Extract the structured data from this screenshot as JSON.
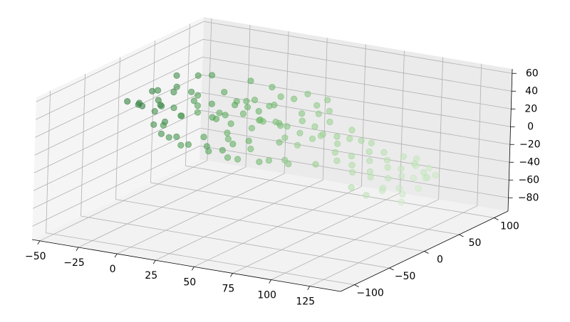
{
  "chart_data": {
    "type": "scatter",
    "projection": "3d",
    "title": "",
    "xlabel": "",
    "ylabel": "",
    "zlabel": "",
    "grid": true,
    "legend": "none",
    "xlim": [
      -55,
      145
    ],
    "ylim": [
      -120,
      120
    ],
    "zlim": [
      -95,
      65
    ],
    "x_ticks": [
      -50,
      -25,
      0,
      25,
      50,
      75,
      100,
      125
    ],
    "x_tick_labels": [
      "−50",
      "−25",
      "0",
      "25",
      "50",
      "75",
      "100",
      "125"
    ],
    "y_ticks": [
      -100,
      -50,
      0,
      50,
      100
    ],
    "y_tick_labels": [
      "−100",
      "−50",
      "0",
      "50",
      "100"
    ],
    "z_ticks": [
      -80,
      -60,
      -40,
      -20,
      0,
      20,
      40,
      60
    ],
    "z_tick_labels": [
      "−80",
      "−60",
      "−40",
      "−20",
      "0",
      "20",
      "40",
      "60"
    ],
    "colormap": [
      "#d6efd0",
      "#9fd494",
      "#5fae5f",
      "#2f7a3e"
    ],
    "alpha": 0.6,
    "series": [
      {
        "points": [
          [
            -45,
            -10,
            22
          ],
          [
            -40,
            -5,
            18
          ],
          [
            -38,
            10,
            28
          ],
          [
            -42,
            5,
            12
          ],
          [
            -35,
            -15,
            25
          ],
          [
            -30,
            0,
            35
          ],
          [
            -33,
            8,
            20
          ],
          [
            -28,
            -8,
            15
          ],
          [
            -25,
            12,
            30
          ],
          [
            -36,
            18,
            10
          ],
          [
            -22,
            -12,
            24
          ],
          [
            -20,
            5,
            40
          ],
          [
            -18,
            -3,
            20
          ],
          [
            -15,
            15,
            32
          ],
          [
            -12,
            -6,
            14
          ],
          [
            -27,
            20,
            45
          ],
          [
            -24,
            -18,
            5
          ],
          [
            -10,
            8,
            26
          ],
          [
            -8,
            -14,
            18
          ],
          [
            -5,
            2,
            36
          ],
          [
            -2,
            16,
            22
          ],
          [
            0,
            -9,
            30
          ],
          [
            3,
            6,
            12
          ],
          [
            5,
            -20,
            28
          ],
          [
            8,
            11,
            40
          ],
          [
            10,
            -4,
            16
          ],
          [
            12,
            18,
            24
          ],
          [
            -14,
            22,
            48
          ],
          [
            -16,
            -22,
            8
          ],
          [
            -6,
            24,
            50
          ],
          [
            -31,
            14,
            -6
          ],
          [
            -26,
            -2,
            -12
          ],
          [
            -21,
            9,
            -18
          ],
          [
            -17,
            -11,
            -10
          ],
          [
            -11,
            4,
            -22
          ],
          [
            -7,
            -16,
            -14
          ],
          [
            -3,
            13,
            -25
          ],
          [
            1,
            -1,
            -8
          ],
          [
            4,
            20,
            -30
          ],
          [
            7,
            -7,
            -20
          ],
          [
            14,
            0,
            20
          ],
          [
            16,
            -13,
            28
          ],
          [
            18,
            7,
            34
          ],
          [
            20,
            -5,
            14
          ],
          [
            22,
            14,
            26
          ],
          [
            24,
            -19,
            10
          ],
          [
            26,
            3,
            38
          ],
          [
            28,
            17,
            22
          ],
          [
            30,
            -10,
            30
          ],
          [
            32,
            9,
            16
          ],
          [
            34,
            -3,
            44
          ],
          [
            36,
            21,
            30
          ],
          [
            38,
            -15,
            18
          ],
          [
            40,
            5,
            36
          ],
          [
            42,
            -8,
            24
          ],
          [
            44,
            13,
            12
          ],
          [
            46,
            -21,
            32
          ],
          [
            48,
            2,
            20
          ],
          [
            50,
            18,
            42
          ],
          [
            52,
            -12,
            28
          ],
          [
            20,
            22,
            52
          ],
          [
            27,
            -24,
            6
          ],
          [
            33,
            24,
            48
          ],
          [
            39,
            -18,
            -4
          ],
          [
            45,
            10,
            46
          ],
          [
            15,
            10,
            -16
          ],
          [
            19,
            -6,
            -24
          ],
          [
            23,
            15,
            -12
          ],
          [
            29,
            -14,
            -20
          ],
          [
            35,
            4,
            -28
          ],
          [
            41,
            19,
            -10
          ],
          [
            47,
            -9,
            -18
          ],
          [
            53,
            6,
            -26
          ],
          [
            55,
            -2,
            20
          ],
          [
            58,
            12,
            30
          ],
          [
            60,
            -16,
            14
          ],
          [
            62,
            4,
            26
          ],
          [
            64,
            20,
            38
          ],
          [
            66,
            -8,
            18
          ],
          [
            68,
            14,
            32
          ],
          [
            70,
            -20,
            10
          ],
          [
            72,
            0,
            24
          ],
          [
            74,
            16,
            36
          ],
          [
            76,
            -12,
            16
          ],
          [
            78,
            8,
            28
          ],
          [
            57,
            22,
            48
          ],
          [
            63,
            -22,
            -8
          ],
          [
            69,
            24,
            44
          ],
          [
            75,
            -4,
            -16
          ],
          [
            80,
            -6,
            20
          ],
          [
            82,
            10,
            12
          ],
          [
            84,
            -18,
            24
          ],
          [
            86,
            2,
            8
          ],
          [
            88,
            18,
            18
          ],
          [
            90,
            -10,
            4
          ],
          [
            92,
            6,
            14
          ],
          [
            94,
            -16,
            -2
          ],
          [
            96,
            14,
            10
          ],
          [
            98,
            -4,
            0
          ],
          [
            100,
            20,
            6
          ],
          [
            102,
            -12,
            -6
          ],
          [
            104,
            8,
            2
          ],
          [
            106,
            -20,
            -10
          ],
          [
            108,
            0,
            -4
          ],
          [
            110,
            16,
            0
          ],
          [
            112,
            -8,
            -12
          ],
          [
            114,
            12,
            -6
          ],
          [
            116,
            -16,
            -14
          ],
          [
            118,
            4,
            -10
          ],
          [
            120,
            22,
            -4
          ],
          [
            122,
            -4,
            -18
          ],
          [
            124,
            10,
            -12
          ],
          [
            126,
            -20,
            -22
          ],
          [
            128,
            2,
            -16
          ],
          [
            130,
            18,
            -10
          ],
          [
            132,
            -10,
            -24
          ],
          [
            134,
            6,
            -18
          ],
          [
            136,
            -14,
            -28
          ],
          [
            138,
            14,
            -20
          ],
          [
            140,
            0,
            -26
          ],
          [
            125,
            30,
            -8
          ],
          [
            130,
            -30,
            -20
          ],
          [
            135,
            26,
            -14
          ],
          [
            118,
            -26,
            -30
          ],
          [
            128,
            34,
            -24
          ],
          [
            140,
            -24,
            -32
          ],
          [
            120,
            38,
            -18
          ],
          [
            133,
            40,
            -28
          ],
          [
            110,
            -30,
            -22
          ],
          [
            126,
            44,
            -34
          ]
        ]
      }
    ]
  }
}
